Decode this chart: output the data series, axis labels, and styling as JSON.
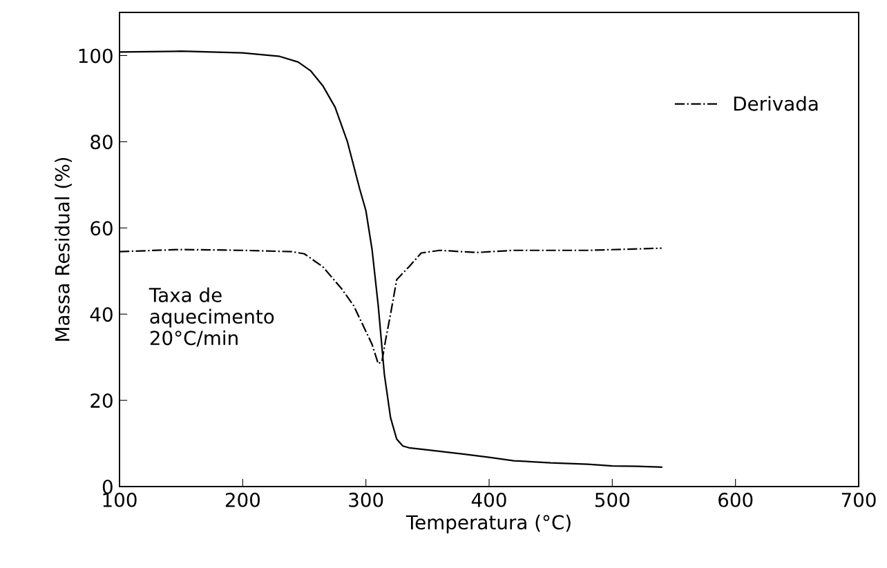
{
  "chart_data": {
    "type": "line",
    "xlabel": "Temperatura (°C)",
    "ylabel": "Massa Residual (%)",
    "xlim": [
      100,
      700
    ],
    "xticks": [
      100,
      200,
      300,
      400,
      500,
      600,
      700
    ],
    "ylim": [
      0,
      110
    ],
    "yticks": [
      0,
      20,
      40,
      60,
      80,
      100
    ],
    "grid": false,
    "legend": "top right",
    "marker": "none",
    "annotations": [
      "Taxa de\naquecimento\n20°C/min"
    ],
    "series": [
      {
        "color": "#000000",
        "line_style": "solid",
        "x": [
          100,
          150,
          200,
          230,
          245,
          255,
          265,
          275,
          285,
          295,
          300,
          305,
          310,
          315,
          320,
          325,
          330,
          335,
          350,
          380,
          400,
          420,
          450,
          480,
          500,
          520,
          540
        ],
        "values": [
          100.8,
          101,
          100.6,
          99.8,
          98.5,
          96.5,
          93,
          88,
          80,
          69,
          64,
          55,
          42,
          26,
          16,
          11,
          9.4,
          9,
          8.5,
          7.5,
          6.8,
          6,
          5.5,
          5.2,
          4.8,
          4.7,
          4.5
        ]
      },
      {
        "name": "Derivada",
        "color": "#000000",
        "line_style": "dashdot",
        "x": [
          100,
          150,
          200,
          240,
          250,
          265,
          280,
          290,
          300,
          305,
          310,
          313,
          316,
          320,
          325,
          335,
          345,
          360,
          390,
          420,
          480,
          540
        ],
        "values": [
          54.5,
          55,
          54.8,
          54.5,
          54,
          51,
          46,
          42,
          36,
          33,
          28.5,
          29,
          34,
          40,
          48,
          51,
          54.2,
          54.8,
          54.3,
          54.8,
          54.8,
          55.3
        ]
      }
    ]
  }
}
